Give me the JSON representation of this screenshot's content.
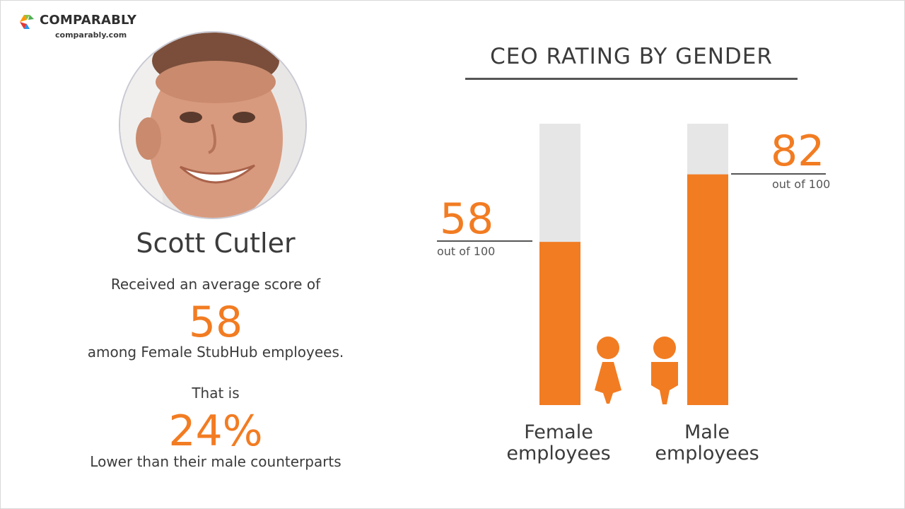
{
  "brand": {
    "name": "COMPARABLY",
    "url": "comparably.com",
    "logo_colors": [
      "#8bc34a",
      "#2196f3",
      "#ff9800",
      "#e53935"
    ]
  },
  "person": {
    "name": "Scott Cutler",
    "line1": "Received an average score of",
    "score": "58",
    "line2": "among Female StubHub employees.",
    "line3": "That is",
    "percent": "24%",
    "line4": "Lower than their male counterparts"
  },
  "colors": {
    "accent": "#f27c22",
    "track": "#e6e6e6",
    "text": "#3b3b3b"
  },
  "chart_data": {
    "type": "bar",
    "title": "CEO RATING BY GENDER",
    "ylim": [
      0,
      100
    ],
    "categories": [
      "Female\nemployees",
      "Male\nemployees"
    ],
    "category_lines": [
      [
        "Female",
        "employees"
      ],
      [
        "Male",
        "employees"
      ]
    ],
    "values": [
      58,
      82
    ],
    "value_labels": [
      "58",
      "82"
    ],
    "value_sublabel": "out of 100",
    "icons": [
      "female-person-icon",
      "male-person-icon"
    ]
  }
}
